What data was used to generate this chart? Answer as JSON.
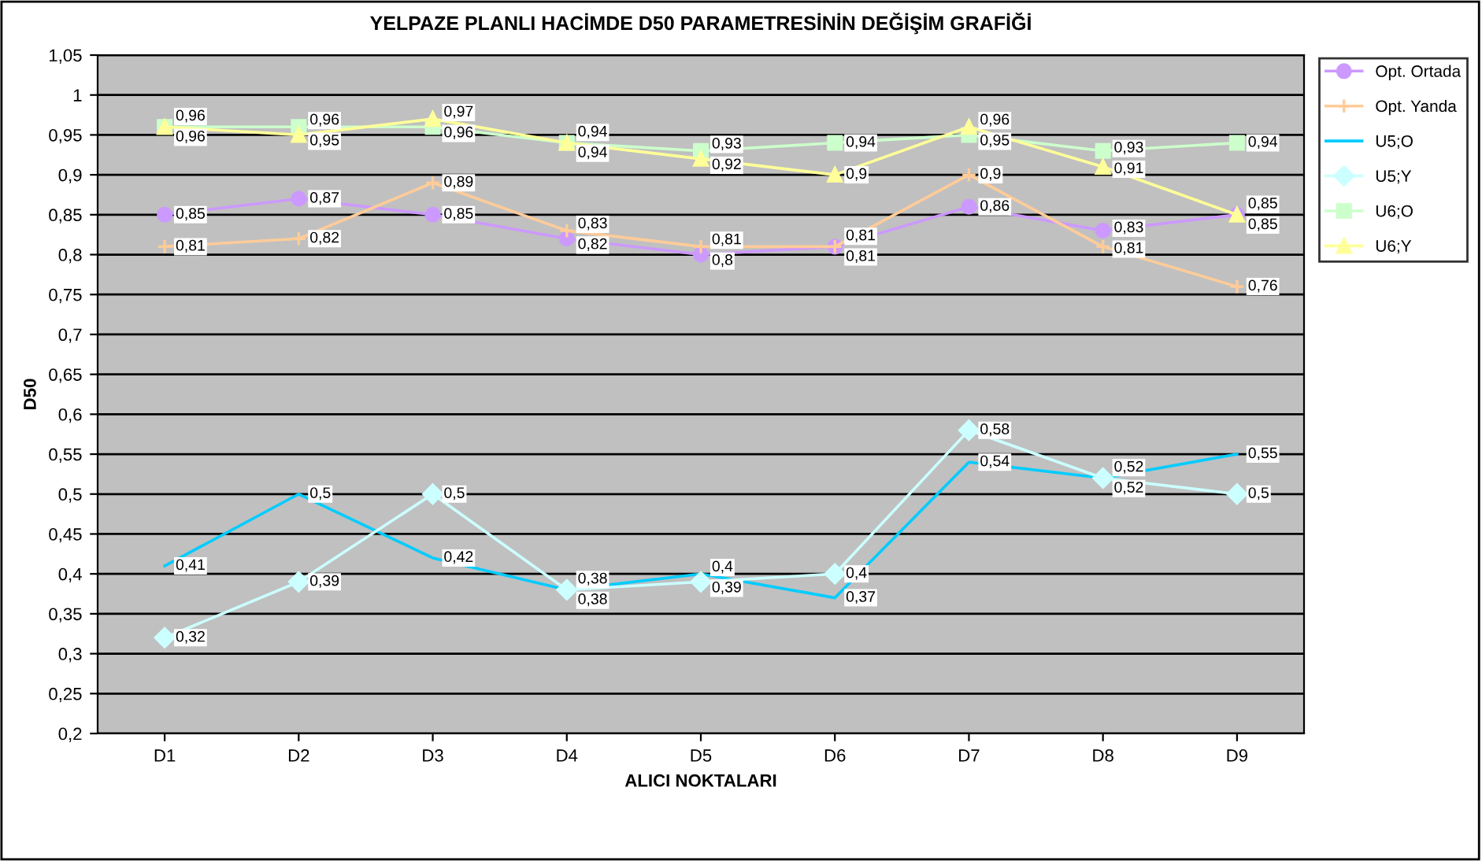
{
  "chart_data": {
    "type": "line",
    "title": "YELPAZE PLANLI HACİMDE D50 PARAMETRESİNİN DEĞİŞİM GRAFİĞİ",
    "xlabel": "ALICI NOKTALARI",
    "ylabel": "D50",
    "categories": [
      "D1",
      "D2",
      "D3",
      "D4",
      "D5",
      "D6",
      "D7",
      "D8",
      "D9"
    ],
    "series": [
      {
        "name": "Opt. Ortada",
        "color": "#cc99ff",
        "marker": "circle",
        "values": [
          0.85,
          0.87,
          0.85,
          0.82,
          0.8,
          0.81,
          0.86,
          0.83,
          0.85
        ],
        "value_labels": [
          "0,85",
          "0,87",
          "0,85",
          "0,82",
          "0,8",
          "0,81",
          "0,86",
          "0,83",
          "0,85"
        ]
      },
      {
        "name": "Opt. Yanda",
        "color": "#ffcc99",
        "marker": "cross",
        "values": [
          0.81,
          0.82,
          0.89,
          0.83,
          0.81,
          0.81,
          0.9,
          0.81,
          0.76
        ],
        "value_labels": [
          "0,81",
          "0,82",
          "0,89",
          "0,83",
          "0,81",
          "0,81",
          "0,9",
          "0,81",
          "0,76"
        ]
      },
      {
        "name": "U5;O",
        "color": "#00ccff",
        "marker": "none",
        "values": [
          0.41,
          0.5,
          0.42,
          0.38,
          0.4,
          0.37,
          0.54,
          0.52,
          0.55
        ],
        "value_labels": [
          "0,41",
          "0,5",
          "0,42",
          "0,38",
          "0,4",
          "0,37",
          "0,54",
          "0,52",
          "0,55"
        ]
      },
      {
        "name": "U5;Y",
        "color": "#ccffff",
        "marker": "diamond",
        "values": [
          0.32,
          0.39,
          0.5,
          0.38,
          0.39,
          0.4,
          0.58,
          0.52,
          0.5
        ],
        "value_labels": [
          "0,32",
          "0,39",
          "0,5",
          "0,38",
          "0,39",
          "0,4",
          "0,58",
          "0,52",
          "0,5"
        ]
      },
      {
        "name": "U6;O",
        "color": "#ccffcc",
        "marker": "square",
        "values": [
          0.96,
          0.96,
          0.96,
          0.94,
          0.93,
          0.94,
          0.95,
          0.93,
          0.94
        ],
        "value_labels": [
          "0,96",
          "0,96",
          "0,96",
          "0,94",
          "0,93",
          "0,94",
          "0,95",
          "0,93",
          "0,94"
        ]
      },
      {
        "name": "U6;Y",
        "color": "#ffff99",
        "marker": "triangle",
        "values": [
          0.96,
          0.95,
          0.97,
          0.94,
          0.92,
          0.9,
          0.96,
          0.91,
          0.85
        ],
        "value_labels": [
          "0,96",
          "0,95",
          "0,97",
          "0,94",
          "0,92",
          "0,9",
          "0,96",
          "0,91",
          "0,85"
        ]
      }
    ],
    "ylim": [
      0.2,
      1.05
    ],
    "yticks": [
      {
        "value": 0.2,
        "label": "0,2"
      },
      {
        "value": 0.25,
        "label": "0,25"
      },
      {
        "value": 0.3,
        "label": "0,3"
      },
      {
        "value": 0.35,
        "label": "0,35"
      },
      {
        "value": 0.4,
        "label": "0,4"
      },
      {
        "value": 0.45,
        "label": "0,45"
      },
      {
        "value": 0.5,
        "label": "0,5"
      },
      {
        "value": 0.55,
        "label": "0,55"
      },
      {
        "value": 0.6,
        "label": "0,6"
      },
      {
        "value": 0.65,
        "label": "0,65"
      },
      {
        "value": 0.7,
        "label": "0,7"
      },
      {
        "value": 0.75,
        "label": "0,75"
      },
      {
        "value": 0.8,
        "label": "0,8"
      },
      {
        "value": 0.85,
        "label": "0,85"
      },
      {
        "value": 0.9,
        "label": "0,9"
      },
      {
        "value": 0.95,
        "label": "0,95"
      },
      {
        "value": 1,
        "label": "1"
      },
      {
        "value": 1.05,
        "label": "1,05"
      }
    ],
    "grid": "y",
    "legend": "right",
    "line_style": "solid"
  }
}
